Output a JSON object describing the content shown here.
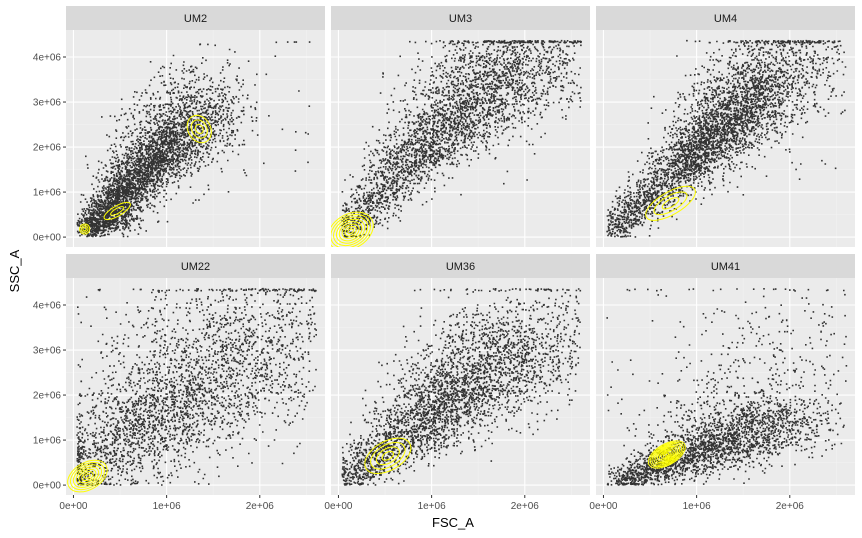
{
  "chart_data": {
    "type": "scatter",
    "facets": [
      "UM2",
      "UM3",
      "UM4",
      "UM22",
      "UM36",
      "UM41"
    ],
    "xlabel": "FSC_A",
    "ylabel": "SSC_A",
    "x_ticks": [
      "0e+00",
      "1e+06",
      "2e+06"
    ],
    "y_ticks": [
      "0e+00",
      "1e+06",
      "2e+06",
      "3e+06",
      "4e+06"
    ],
    "x_tick_values": [
      0,
      1000000,
      2000000
    ],
    "y_tick_values": [
      0,
      1000000,
      2000000,
      3000000,
      4000000
    ],
    "xlim": [
      -80000,
      2700000
    ],
    "ylim": [
      -220000,
      4600000
    ],
    "grid": true,
    "point_color": "#333333",
    "contour_color": "#ffff00",
    "panel_background": "#ebebeb",
    "strip_background": "#d9d9d9",
    "clouds": [
      [
        {
          "x": [
            120000,
            1350000
          ],
          "y": [
            150000,
            2700000
          ],
          "width": 230000,
          "weight": 0.62
        },
        {
          "x": [
            350000,
            1400000
          ],
          "y": [
            350000,
            3600000
          ],
          "width": 260000,
          "weight": 0.25
        },
        {
          "x": [
            150000,
            600000
          ],
          "y": [
            100000,
            700000
          ],
          "width": 150000,
          "weight": 0.13
        }
      ],
      [
        {
          "x": [
            50000,
            1800000
          ],
          "y": [
            50000,
            4300000
          ],
          "width": 300000,
          "weight": 0.7
        },
        {
          "x": [
            700000,
            2500000
          ],
          "y": [
            1500000,
            4350000
          ],
          "width": 380000,
          "weight": 0.3
        }
      ],
      [
        {
          "x": [
            80000,
            1700000
          ],
          "y": [
            100000,
            3200000
          ],
          "width": 260000,
          "weight": 0.55
        },
        {
          "x": [
            800000,
            2100000
          ],
          "y": [
            1500000,
            4350000
          ],
          "width": 330000,
          "weight": 0.45
        }
      ],
      [
        {
          "x": [
            50000,
            1900000
          ],
          "y": [
            50000,
            3300000
          ],
          "width": 600000,
          "weight": 0.75
        },
        {
          "x": [
            500000,
            2500000
          ],
          "y": [
            1000000,
            4300000
          ],
          "width": 600000,
          "weight": 0.25
        }
      ],
      [
        {
          "x": [
            80000,
            1800000
          ],
          "y": [
            50000,
            3200000
          ],
          "width": 320000,
          "weight": 0.7
        },
        {
          "x": [
            900000,
            2500000
          ],
          "y": [
            800000,
            4100000
          ],
          "width": 500000,
          "weight": 0.3
        }
      ],
      [
        {
          "x": [
            150000,
            2000000
          ],
          "y": [
            100000,
            1500000
          ],
          "width": 260000,
          "weight": 0.88
        },
        {
          "x": [
            600000,
            2500000
          ],
          "y": [
            800000,
            4000000
          ],
          "width": 700000,
          "weight": 0.12
        }
      ]
    ],
    "density_modes": [
      [
        {
          "x": 1350000,
          "y": 2400000,
          "sx": 120000,
          "sy": 320000,
          "levels": 3
        },
        {
          "x": 470000,
          "y": 580000,
          "sx": 160000,
          "sy": 110000,
          "levels": 2
        },
        {
          "x": 120000,
          "y": 180000,
          "sx": 55000,
          "sy": 110000,
          "levels": 3
        }
      ],
      [
        {
          "x": 130000,
          "y": 130000,
          "sx": 260000,
          "sy": 380000,
          "levels": 8
        }
      ],
      [
        {
          "x": 720000,
          "y": 750000,
          "sx": 300000,
          "sy": 250000,
          "levels": 3
        }
      ],
      [
        {
          "x": 150000,
          "y": 200000,
          "sx": 230000,
          "sy": 300000,
          "levels": 7
        }
      ],
      [
        {
          "x": 530000,
          "y": 650000,
          "sx": 270000,
          "sy": 320000,
          "levels": 4
        }
      ],
      [
        {
          "x": 680000,
          "y": 680000,
          "sx": 220000,
          "sy": 230000,
          "levels": 10
        }
      ]
    ]
  }
}
